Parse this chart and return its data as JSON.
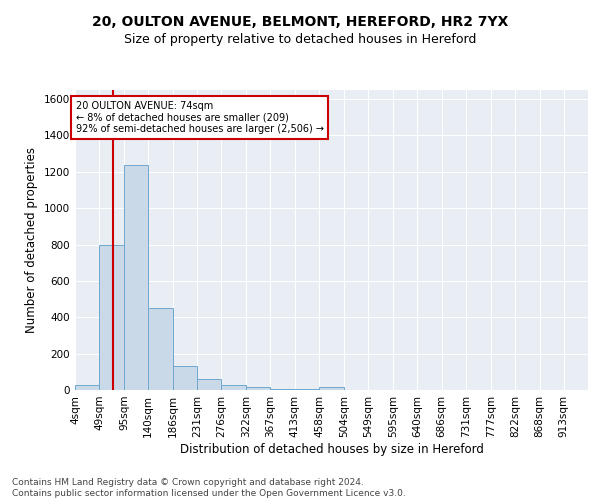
{
  "title_line1": "20, OULTON AVENUE, BELMONT, HEREFORD, HR2 7YX",
  "title_line2": "Size of property relative to detached houses in Hereford",
  "xlabel": "Distribution of detached houses by size in Hereford",
  "ylabel": "Number of detached properties",
  "bin_labels": [
    "4sqm",
    "49sqm",
    "95sqm",
    "140sqm",
    "186sqm",
    "231sqm",
    "276sqm",
    "322sqm",
    "367sqm",
    "413sqm",
    "458sqm",
    "504sqm",
    "549sqm",
    "595sqm",
    "640sqm",
    "686sqm",
    "731sqm",
    "777sqm",
    "822sqm",
    "868sqm",
    "913sqm"
  ],
  "bin_edges": [
    4,
    49,
    95,
    140,
    186,
    231,
    276,
    322,
    367,
    413,
    458,
    504,
    549,
    595,
    640,
    686,
    731,
    777,
    822,
    868,
    913
  ],
  "bar_heights": [
    25,
    800,
    1240,
    450,
    130,
    62,
    25,
    18,
    5,
    5,
    18,
    0,
    0,
    0,
    0,
    0,
    0,
    0,
    0,
    0
  ],
  "bar_color": "#c9d9e8",
  "bar_edge_color": "#6fa8d0",
  "grid_color": "#ffffff",
  "bg_color": "#e8eef4",
  "vline_x": 74,
  "vline_color": "#cc0000",
  "annotation_text": "20 OULTON AVENUE: 74sqm\n← 8% of detached houses are smaller (209)\n92% of semi-detached houses are larger (2,506) →",
  "annotation_box_color": "#cc0000",
  "annotation_bg": "#ffffff",
  "ylim": [
    0,
    1650
  ],
  "yticks": [
    0,
    200,
    400,
    600,
    800,
    1000,
    1200,
    1400,
    1600
  ],
  "footnote": "Contains HM Land Registry data © Crown copyright and database right 2024.\nContains public sector information licensed under the Open Government Licence v3.0.",
  "title_fontsize": 10,
  "subtitle_fontsize": 9,
  "axis_label_fontsize": 8.5,
  "tick_fontsize": 7.5,
  "footnote_fontsize": 6.5
}
